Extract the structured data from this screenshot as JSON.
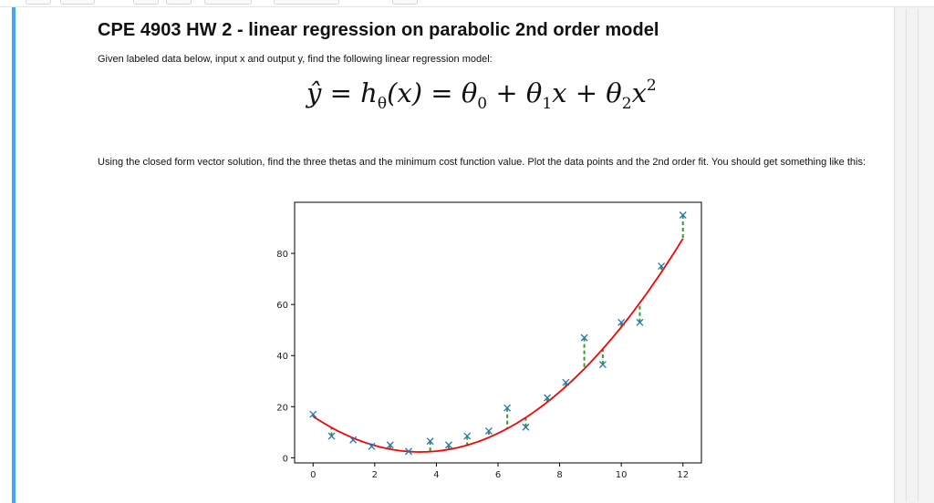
{
  "title": "CPE 4903 HW 2 - linear regression on parabolic 2nd order model",
  "intro": "Given labeled data below, input x and output y, find the following linear regression model:",
  "formula": {
    "lhs": "ŷ",
    "eq1": "=",
    "h": "h",
    "h_sub": "θ",
    "h_arg": "(x)",
    "eq2": "=",
    "t0": "θ",
    "t0_sub": "0",
    "plus1": "+",
    "t1": "θ",
    "t1_sub": "1",
    "x1": "x",
    "plus2": "+",
    "t2": "θ",
    "t2_sub": "2",
    "x2": "x",
    "x2_sup": "2"
  },
  "instructions": "Using the closed form vector solution, find the three thetas and the minimum cost function value. Plot the data points and the 2nd order fit. You should get something like this:",
  "colors": {
    "cell_accent": "#42a5f5",
    "data_marker": "#1f77b4",
    "fit_line": "#ff0000",
    "residual": "#2ca02c"
  },
  "chart_data": {
    "type": "scatter",
    "xlim": [
      -0.6,
      12.6
    ],
    "ylim": [
      -2,
      100
    ],
    "x_ticks": [
      0,
      2,
      4,
      6,
      8,
      10,
      12
    ],
    "y_ticks": [
      0,
      20,
      40,
      60,
      80
    ],
    "grid": false,
    "points": [
      [
        0,
        17
      ],
      [
        0.6,
        8.5
      ],
      [
        1.3,
        7
      ],
      [
        1.9,
        4.5
      ],
      [
        2.5,
        5
      ],
      [
        3.1,
        2.5
      ],
      [
        3.8,
        6.5
      ],
      [
        4.4,
        5
      ],
      [
        5.0,
        8.5
      ],
      [
        5.7,
        10.5
      ],
      [
        6.3,
        19.5
      ],
      [
        6.9,
        12
      ],
      [
        7.6,
        23.5
      ],
      [
        8.2,
        29.5
      ],
      [
        8.8,
        47
      ],
      [
        9.4,
        36.5
      ],
      [
        10.0,
        53
      ],
      [
        10.6,
        53
      ],
      [
        11.3,
        75
      ],
      [
        12,
        95
      ]
    ],
    "fit": {
      "theta0": 16.2,
      "theta1": -8.0,
      "theta2": 1.15
    }
  }
}
